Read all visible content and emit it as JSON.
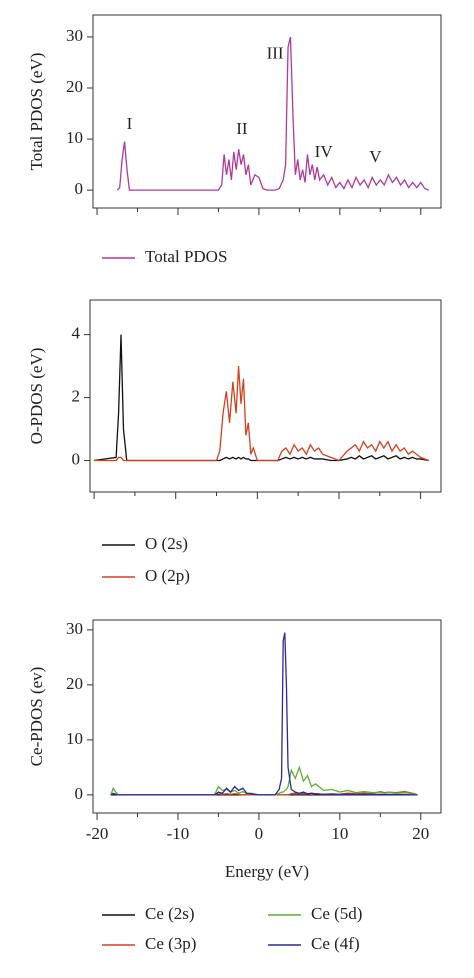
{
  "chart_data": [
    {
      "type": "line",
      "ylabel": "Total PDOS (eV)",
      "xlim": [
        -20.5,
        22.5
      ],
      "xticks": [
        -20,
        -10,
        0,
        10,
        20
      ],
      "show_xtick_labels": false,
      "ylim": [
        -3.5,
        34.3
      ],
      "yticks": [
        0,
        10,
        20,
        30
      ],
      "x": [
        -17.5,
        -17.2,
        -16.9,
        -16.6,
        -16.3,
        -16.0,
        -15,
        -10,
        -5,
        -4.6,
        -4.3,
        -4.0,
        -3.7,
        -3.4,
        -3.1,
        -2.8,
        -2.5,
        -2.2,
        -1.9,
        -1.6,
        -1.3,
        -1.0,
        -0.5,
        0,
        0.5,
        1,
        1.5,
        2,
        2.5,
        3.0,
        3.3,
        3.6,
        3.9,
        4.2,
        4.5,
        4.8,
        5.1,
        5.4,
        5.7,
        6.0,
        6.3,
        6.6,
        6.9,
        7.2,
        7.5,
        8,
        8.5,
        9,
        9.5,
        10,
        10.5,
        11,
        11.5,
        12,
        12.5,
        13,
        13.5,
        14,
        14.5,
        15,
        15.5,
        16,
        16.5,
        17,
        17.5,
        18,
        18.5,
        19,
        19.5,
        20,
        20.5,
        21
      ],
      "series": [
        {
          "name": "Total PDOS",
          "color": "#b03a9a",
          "values": [
            0,
            0.5,
            6,
            9.5,
            4,
            0,
            0,
            0,
            0,
            1,
            7,
            3,
            6,
            2,
            7.5,
            4,
            8,
            5,
            7,
            3,
            5,
            1,
            3,
            2.5,
            0.3,
            0,
            0,
            0,
            0.3,
            2,
            5,
            28,
            30,
            15,
            3,
            6,
            2,
            4,
            1.5,
            7,
            3,
            5,
            2,
            4.5,
            2,
            3,
            1,
            2.5,
            0.5,
            1.5,
            0.3,
            2,
            0.5,
            2.5,
            1,
            2,
            0.5,
            2.5,
            1,
            2,
            1,
            3,
            1.5,
            2.5,
            1,
            2,
            0.5,
            1.5,
            0.5,
            1.5,
            0.3,
            0
          ]
        }
      ],
      "annotations": [
        {
          "text": "I",
          "x": -16.0,
          "y": 12.7
        },
        {
          "text": "II",
          "x": -2.1,
          "y": 11.8
        },
        {
          "text": "III",
          "x": 2.0,
          "y": 26.5
        },
        {
          "text": "IV",
          "x": 8.0,
          "y": 7.3
        },
        {
          "text": "V",
          "x": 14.4,
          "y": 6.3
        }
      ]
    },
    {
      "type": "line",
      "ylabel": "O-PDOS (eV)",
      "xlim": [
        -20.5,
        22.5
      ],
      "xticks": [
        -20,
        -10,
        0,
        10,
        20
      ],
      "show_xtick_labels": false,
      "ylim": [
        -1.0,
        5.1
      ],
      "yticks": [
        0,
        2,
        4
      ],
      "x": [
        -20,
        -17.3,
        -17,
        -16.7,
        -16.4,
        -16,
        -10,
        -5,
        -4.6,
        -4.2,
        -3.8,
        -3.4,
        -3.0,
        -2.6,
        -2.3,
        -2.0,
        -1.7,
        -1.4,
        -1.1,
        -0.8,
        -0.5,
        0,
        2,
        2.5,
        3,
        3.5,
        4,
        4.5,
        5,
        5.5,
        6,
        6.5,
        7,
        7.5,
        8,
        9,
        10,
        11,
        11.5,
        12,
        12.5,
        13,
        13.5,
        14,
        14.5,
        15,
        15.5,
        16,
        16.5,
        17,
        17.5,
        18,
        18.5,
        19,
        19.5,
        20,
        21
      ],
      "series": [
        {
          "name": "O (2s)",
          "color": "#111111",
          "values": [
            0,
            0.1,
            1.5,
            4,
            1,
            0,
            0,
            0,
            0,
            0.05,
            0.1,
            0.05,
            0.1,
            0.05,
            0.1,
            0.05,
            0.1,
            0.05,
            0.05,
            0,
            0,
            0,
            0,
            0,
            0.05,
            0.1,
            0.05,
            0.1,
            0.05,
            0.1,
            0.05,
            0.1,
            0.05,
            0.05,
            0.05,
            0,
            0,
            0.05,
            0.1,
            0.05,
            0.15,
            0.05,
            0.1,
            0.15,
            0.05,
            0.1,
            0.15,
            0.05,
            0.1,
            0.15,
            0.05,
            0.1,
            0.05,
            0.1,
            0.05,
            0.05,
            0
          ]
        },
        {
          "name": "O (2p)",
          "color": "#d2401e",
          "values": [
            0,
            0,
            0.1,
            0.1,
            0,
            0,
            0,
            0,
            0.3,
            1.5,
            2.2,
            1.2,
            2.5,
            1.5,
            3,
            1.8,
            2.6,
            0.8,
            1.2,
            0.2,
            0.4,
            0,
            0,
            0,
            0.3,
            0.4,
            0.2,
            0.5,
            0.3,
            0.4,
            0.2,
            0.5,
            0.3,
            0.4,
            0.2,
            0.1,
            0,
            0.3,
            0.4,
            0.5,
            0.3,
            0.6,
            0.4,
            0.5,
            0.3,
            0.6,
            0.4,
            0.6,
            0.3,
            0.5,
            0.3,
            0.4,
            0.2,
            0.3,
            0.2,
            0.1,
            0
          ]
        }
      ]
    },
    {
      "type": "line",
      "ylabel": "Ce-PDOS (ev)",
      "xlabel": "Energy (eV)",
      "xlim": [
        -20.5,
        22.5
      ],
      "xticks": [
        -20,
        -10,
        0,
        10,
        20
      ],
      "show_xtick_labels": true,
      "ylim": [
        -3.3,
        31.8
      ],
      "yticks": [
        0,
        10,
        20,
        30
      ],
      "x": [
        -18.3,
        -18,
        -17.7,
        -17.4,
        -10,
        -5.5,
        -5,
        -4.5,
        -4,
        -3.5,
        -3,
        -2.5,
        -2,
        -1.5,
        -1,
        0,
        1,
        2,
        2.5,
        2.8,
        3.0,
        3.2,
        3.4,
        3.6,
        4,
        4.5,
        5,
        5.5,
        6,
        6.5,
        7,
        8,
        9,
        10,
        11,
        12,
        13,
        14,
        15,
        15.5,
        16,
        17,
        18,
        19,
        19.6
      ],
      "series": [
        {
          "name": "Ce (2s)",
          "color": "#111111",
          "values": [
            0,
            0,
            0,
            0,
            0,
            0,
            0,
            0,
            0,
            0,
            0,
            0,
            0,
            0,
            0,
            0,
            0,
            0,
            0,
            0,
            0,
            0,
            0,
            0,
            0,
            0,
            0,
            0,
            0,
            0,
            0,
            0,
            0,
            0,
            0,
            0,
            0,
            0,
            0,
            0,
            0,
            0,
            0,
            0,
            0
          ]
        },
        {
          "name": "Ce (3p)",
          "color": "#d2401e",
          "values": [
            0,
            0.3,
            0.1,
            0,
            0,
            0,
            0.2,
            0.1,
            0.2,
            0.1,
            0.2,
            0.1,
            0,
            0,
            0,
            0,
            0,
            0,
            0,
            0,
            0,
            0,
            0,
            0,
            0.2,
            0.3,
            0.2,
            0.3,
            0.2,
            0.1,
            0.2,
            0.1,
            0.2,
            0.1,
            0.3,
            0.2,
            0.3,
            0.2,
            0.6,
            0.4,
            0.5,
            0.4,
            0.6,
            0.3,
            0
          ]
        },
        {
          "name": "Ce (5d)",
          "color": "#5cb030",
          "values": [
            0,
            1.2,
            0.5,
            0,
            0,
            0,
            1.5,
            0.8,
            1,
            0.5,
            0.8,
            0.3,
            0.6,
            0.2,
            0.3,
            0,
            0,
            0,
            0.3,
            0.5,
            0.5,
            0.8,
            1,
            1.5,
            4.5,
            3,
            5,
            2.5,
            3.5,
            1.5,
            2,
            0.8,
            1,
            0.5,
            0.8,
            0.4,
            0.6,
            0.4,
            0.5,
            0.3,
            0.5,
            0.3,
            0.4,
            0.2,
            0
          ]
        },
        {
          "name": "Ce (4f)",
          "color": "#2a2a9a",
          "values": [
            0,
            0.2,
            0.1,
            0,
            0,
            0,
            0.5,
            0.3,
            1.2,
            0.5,
            1.5,
            0.8,
            1.2,
            0.3,
            0.2,
            0,
            0,
            0,
            1,
            3,
            28,
            29.5,
            20,
            5,
            1,
            0.5,
            0.3,
            0.5,
            0.2,
            0.3,
            0.2,
            0.1,
            0.1,
            0.05,
            0.1,
            0.05,
            0.1,
            0.05,
            0.1,
            0.05,
            0.1,
            0.05,
            0.05,
            0,
            0
          ]
        }
      ]
    }
  ]
}
